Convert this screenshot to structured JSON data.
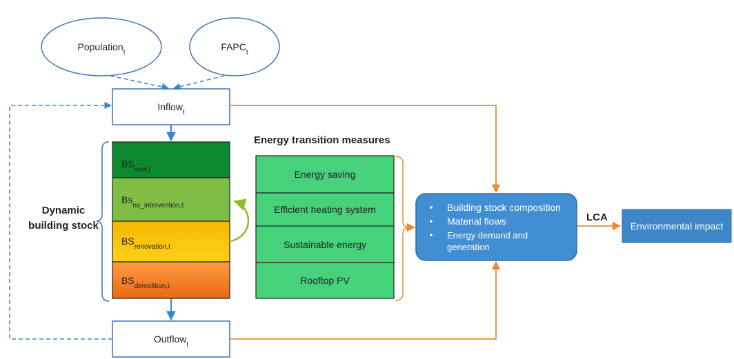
{
  "nodes": {
    "population": {
      "label": "Population",
      "sub": "t"
    },
    "fapc": {
      "label": "FAPC",
      "sub": "t"
    },
    "inflow": {
      "label": "Inflow",
      "sub": "t"
    },
    "outflow": {
      "label": "Outflow",
      "sub": "t"
    },
    "stock": {
      "label": "Dynamic building stock",
      "layers": [
        {
          "label": "BS",
          "sub": "new,t"
        },
        {
          "label": "Bs",
          "sub": "no_intervention,t"
        },
        {
          "label": "BS",
          "sub": "renovation,t"
        },
        {
          "label": "BS",
          "sub": "demolition,t"
        }
      ]
    },
    "measures": {
      "title": "Energy transition measures",
      "items": [
        "Energy saving",
        "Efficient heating system",
        "Sustainable energy",
        "Rooftop PV"
      ]
    },
    "outputs": {
      "items": [
        "Building stock composition",
        "Material flows",
        "Energy demand and generation"
      ]
    },
    "lca": {
      "label": "LCA"
    },
    "impact": {
      "label": "Environmental impact"
    }
  }
}
